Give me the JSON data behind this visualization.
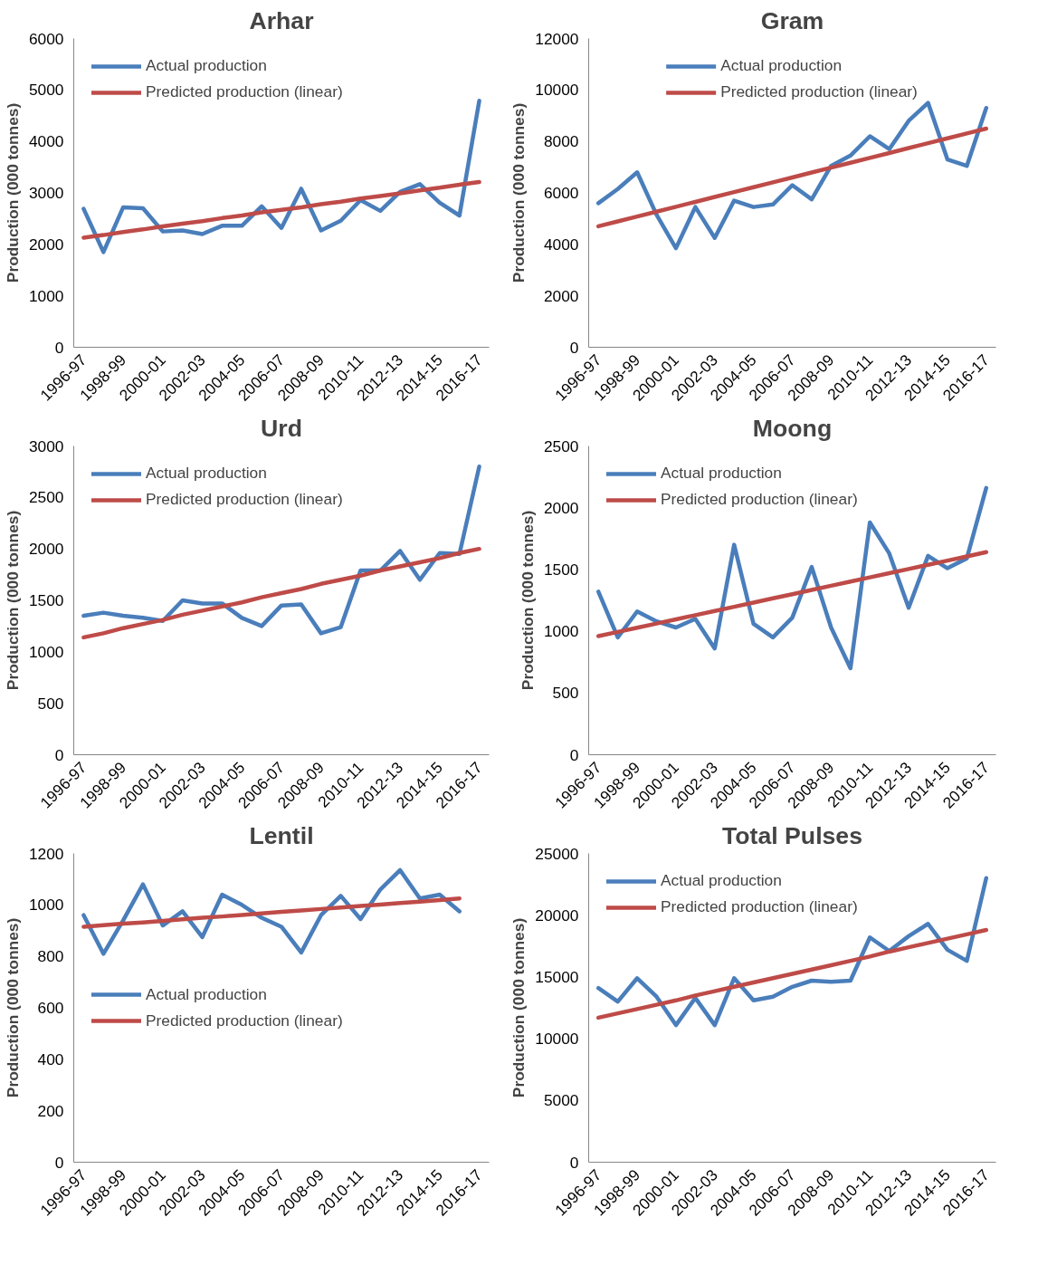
{
  "chart_data": [
    {
      "type": "line",
      "title": "Arhar",
      "ylabel": "Production (000 tonnes)",
      "categories": [
        "1996-97",
        null,
        "1998-99",
        null,
        "2000-01",
        null,
        "2002-03",
        null,
        "2004-05",
        null,
        "2006-07",
        null,
        "2008-09",
        null,
        "2010-11",
        null,
        "2012-13",
        null,
        "2014-15",
        null,
        "2016-17"
      ],
      "ylim": [
        0,
        6000
      ],
      "yticks": [
        0,
        1000,
        2000,
        3000,
        4000,
        5000,
        6000
      ],
      "grid": false,
      "legend": "top left",
      "line_style": "solid",
      "marker": "none",
      "series": [
        {
          "name": "Actual production",
          "color": "#4a7ebb",
          "values": [
            2690,
            1850,
            2720,
            2700,
            2250,
            2270,
            2200,
            2360,
            2360,
            2740,
            2320,
            3080,
            2270,
            2460,
            2860,
            2650,
            3020,
            3170,
            2810,
            2560,
            4790
          ]
        },
        {
          "name": "Predicted production (linear)",
          "color": "#be4b48",
          "values": [
            2130,
            2180,
            2240,
            2290,
            2350,
            2400,
            2450,
            2510,
            2560,
            2620,
            2670,
            2720,
            2780,
            2830,
            2890,
            2940,
            2990,
            3050,
            3100,
            3160,
            3210
          ]
        }
      ]
    },
    {
      "type": "line",
      "title": "Gram",
      "ylabel": "Production (000 tonnes)",
      "categories": [
        "1996-97",
        null,
        "1998-99",
        null,
        "2000-01",
        null,
        "2002-03",
        null,
        "2004-05",
        null,
        "2006-07",
        null,
        "2008-09",
        null,
        "2010-11",
        null,
        "2012-13",
        null,
        "2014-15",
        null,
        "2016-17"
      ],
      "ylim": [
        0,
        12000
      ],
      "yticks": [
        0,
        2000,
        4000,
        6000,
        8000,
        10000,
        12000
      ],
      "grid": false,
      "legend": "top",
      "line_style": "solid",
      "marker": "none",
      "series": [
        {
          "name": "Actual production",
          "color": "#4a7ebb",
          "values": [
            5600,
            6150,
            6800,
            5150,
            3850,
            5450,
            4250,
            5700,
            5450,
            5550,
            6300,
            5750,
            7050,
            7450,
            8200,
            7700,
            8800,
            9500,
            7300,
            7050,
            9300
          ]
        },
        {
          "name": "Predicted production (linear)",
          "color": "#be4b48",
          "values": [
            4700,
            4890,
            5080,
            5270,
            5460,
            5650,
            5840,
            6030,
            6220,
            6410,
            6600,
            6790,
            6980,
            7170,
            7360,
            7550,
            7740,
            7930,
            8120,
            8310,
            8500
          ]
        }
      ]
    },
    {
      "type": "line",
      "title": "Urd",
      "ylabel": "Production (000 tonnes)",
      "categories": [
        "1996-97",
        null,
        "1998-99",
        null,
        "2000-01",
        null,
        "2002-03",
        null,
        "2004-05",
        null,
        "2006-07",
        null,
        "2008-09",
        null,
        "2010-11",
        null,
        "2012-13",
        null,
        "2014-15",
        null,
        "2016-17"
      ],
      "ylim": [
        0,
        3000
      ],
      "yticks": [
        0,
        500,
        1000,
        1500,
        2000,
        2500,
        3000
      ],
      "grid": false,
      "legend": "top left",
      "line_style": "solid",
      "marker": "none",
      "series": [
        {
          "name": "Actual production",
          "color": "#4a7ebb",
          "values": [
            1350,
            1380,
            1350,
            1330,
            1300,
            1500,
            1470,
            1470,
            1330,
            1250,
            1450,
            1460,
            1180,
            1240,
            1790,
            1790,
            1980,
            1700,
            1960,
            1950,
            2800
          ]
        },
        {
          "name": "Predicted production (linear)",
          "color": "#be4b48",
          "values": [
            1140,
            1180,
            1230,
            1270,
            1310,
            1360,
            1400,
            1440,
            1480,
            1530,
            1570,
            1610,
            1660,
            1700,
            1740,
            1790,
            1830,
            1870,
            1910,
            1960,
            2000
          ]
        }
      ]
    },
    {
      "type": "line",
      "title": "Moong",
      "ylabel": "Production (000 tonnes)",
      "categories": [
        "1996-97",
        null,
        "1998-99",
        null,
        "2000-01",
        null,
        "2002-03",
        null,
        "2004-05",
        null,
        "2006-07",
        null,
        "2008-09",
        null,
        "2010-11",
        null,
        "2012-13",
        null,
        "2014-15",
        null,
        "2016-17"
      ],
      "ylim": [
        0,
        2500
      ],
      "yticks": [
        0,
        500,
        1000,
        1500,
        2000,
        2500
      ],
      "grid": false,
      "legend": "top left",
      "line_style": "solid",
      "marker": "none",
      "series": [
        {
          "name": "Actual production",
          "color": "#4a7ebb",
          "values": [
            1320,
            950,
            1160,
            1080,
            1030,
            1100,
            860,
            1700,
            1060,
            950,
            1110,
            1520,
            1030,
            700,
            1880,
            1630,
            1190,
            1610,
            1510,
            1590,
            2160
          ]
        },
        {
          "name": "Predicted production (linear)",
          "color": "#be4b48",
          "values": [
            960,
            994,
            1028,
            1062,
            1096,
            1130,
            1164,
            1198,
            1232,
            1266,
            1300,
            1334,
            1368,
            1402,
            1436,
            1470,
            1504,
            1538,
            1572,
            1606,
            1640
          ]
        }
      ]
    },
    {
      "type": "line",
      "title": "Lentil",
      "ylabel": "Production (000 tonnes)",
      "categories": [
        "1996-97",
        null,
        "1998-99",
        null,
        "2000-01",
        null,
        "2002-03",
        null,
        "2004-05",
        null,
        "2006-07",
        null,
        "2008-09",
        null,
        "2010-11",
        null,
        "2012-13",
        null,
        "2014-15",
        null,
        "2016-17"
      ],
      "ylim": [
        0,
        1200
      ],
      "yticks": [
        0,
        200,
        400,
        600,
        800,
        1000,
        1200
      ],
      "grid": false,
      "legend": "left",
      "line_style": "solid",
      "marker": "none",
      "series": [
        {
          "name": "Actual production",
          "color": "#4a7ebb",
          "values": [
            960,
            810,
            940,
            1080,
            920,
            975,
            875,
            1040,
            1000,
            950,
            915,
            815,
            960,
            1035,
            945,
            1060,
            1135,
            1025,
            1040,
            975,
            null
          ]
        },
        {
          "name": "Predicted production (linear)",
          "color": "#be4b48",
          "values": [
            915,
            921,
            927,
            932,
            938,
            944,
            950,
            955,
            961,
            967,
            973,
            978,
            984,
            990,
            996,
            1001,
            1007,
            1013,
            1019,
            1025,
            null
          ]
        }
      ]
    },
    {
      "type": "line",
      "title": "Total Pulses",
      "ylabel": "Production (000 tonnes)",
      "categories": [
        "1996-97",
        null,
        "1998-99",
        null,
        "2000-01",
        null,
        "2002-03",
        null,
        "2004-05",
        null,
        "2006-07",
        null,
        "2008-09",
        null,
        "2010-11",
        null,
        "2012-13",
        null,
        "2014-15",
        null,
        "2016-17"
      ],
      "ylim": [
        0,
        25000
      ],
      "yticks": [
        0,
        5000,
        10000,
        15000,
        20000,
        25000
      ],
      "grid": false,
      "legend": "top left",
      "line_style": "solid",
      "marker": "none",
      "series": [
        {
          "name": "Actual production",
          "color": "#4a7ebb",
          "values": [
            14100,
            13000,
            14900,
            13400,
            11100,
            13300,
            11100,
            14900,
            13100,
            13400,
            14200,
            14700,
            14600,
            14700,
            18200,
            17100,
            18300,
            19300,
            17200,
            16300,
            23000
          ]
        },
        {
          "name": "Predicted production (linear)",
          "color": "#be4b48",
          "values": [
            11700,
            12050,
            12400,
            12750,
            13100,
            13500,
            13850,
            14200,
            14550,
            14900,
            15250,
            15600,
            15950,
            16300,
            16650,
            17050,
            17400,
            17750,
            18100,
            18450,
            18800
          ]
        }
      ]
    }
  ]
}
